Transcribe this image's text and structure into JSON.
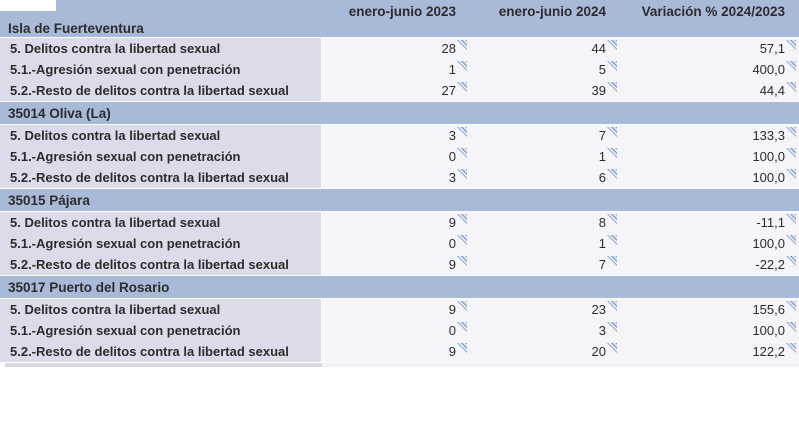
{
  "table": {
    "columns": [
      "enero-junio 2023",
      "enero-junio 2024",
      "Variación % 2024/2023"
    ],
    "sections": [
      {
        "title": "Isla de Fuerteventura",
        "rows": [
          {
            "label": "5. Delitos contra la libertad sexual",
            "v2023": "28",
            "v2024": "44",
            "variation": "57,1"
          },
          {
            "label": "5.1.-Agresión sexual con penetración",
            "v2023": "1",
            "v2024": "5",
            "variation": "400,0"
          },
          {
            "label": "5.2.-Resto de delitos contra la libertad sexual",
            "v2023": "27",
            "v2024": "39",
            "variation": "44,4"
          }
        ]
      },
      {
        "title": "35014 Oliva (La)",
        "rows": [
          {
            "label": "5. Delitos contra la libertad sexual",
            "v2023": "3",
            "v2024": "7",
            "variation": "133,3"
          },
          {
            "label": "5.1.-Agresión sexual con penetración",
            "v2023": "0",
            "v2024": "1",
            "variation": "100,0"
          },
          {
            "label": "5.2.-Resto de delitos contra la libertad sexual",
            "v2023": "3",
            "v2024": "6",
            "variation": "100,0"
          }
        ]
      },
      {
        "title": "35015 Pájara",
        "rows": [
          {
            "label": "5. Delitos contra la libertad sexual",
            "v2023": "9",
            "v2024": "8",
            "variation": "-11,1"
          },
          {
            "label": "5.1.-Agresión sexual con penetración",
            "v2023": "0",
            "v2024": "1",
            "variation": "100,0"
          },
          {
            "label": "5.2.-Resto de delitos contra la libertad sexual",
            "v2023": "9",
            "v2024": "7",
            "variation": "-22,2"
          }
        ]
      },
      {
        "title": "35017 Puerto del Rosario",
        "rows": [
          {
            "label": "5. Delitos contra la libertad sexual",
            "v2023": "9",
            "v2024": "23",
            "variation": "155,6"
          },
          {
            "label": "5.1.-Agresión sexual con penetración",
            "v2023": "0",
            "v2024": "3",
            "variation": "100,0"
          },
          {
            "label": "5.2.-Resto de delitos contra la libertad sexual",
            "v2023": "9",
            "v2024": "20",
            "variation": "122,2"
          }
        ]
      }
    ],
    "icons": {
      "revision_marker": "striped-corner-triangle"
    },
    "colors": {
      "band_blue": "#a8bad8",
      "label_cell_bg": "#dbdbe9",
      "data_cell_bg": "#f4f4f9",
      "marker_blue": "#8aa2cd",
      "text": "#2c2c2e"
    }
  }
}
